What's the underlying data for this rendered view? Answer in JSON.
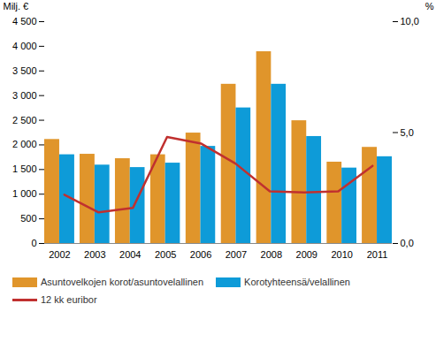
{
  "chart_data": {
    "type": "bar",
    "categories": [
      "2002",
      "2003",
      "2004",
      "2005",
      "2006",
      "2007",
      "2008",
      "2009",
      "2010",
      "2011"
    ],
    "series": [
      {
        "name": "Asuntovelkojen korot/asuntovelallinen",
        "color": "#e0952b",
        "values": [
          2110,
          1810,
          1720,
          1800,
          2240,
          3230,
          3890,
          2490,
          1650,
          1950
        ]
      },
      {
        "name": "Korotyhteensä/velallinen",
        "color": "#0e9bd8",
        "values": [
          1800,
          1590,
          1540,
          1630,
          1970,
          2750,
          3230,
          2170,
          1530,
          1760
        ]
      },
      {
        "name": "12 kk euribor",
        "type": "line",
        "axis": "y2",
        "color": "#c0302f",
        "values": [
          2.2,
          1.4,
          1.6,
          4.8,
          4.5,
          3.6,
          2.35,
          2.3,
          2.35,
          3.5
        ]
      }
    ],
    "ylabel": "Milj. €",
    "y2label": "%",
    "ylim": [
      0,
      4500
    ],
    "yticks": [
      0,
      500,
      {
        "value": 1000,
        "label": "1 000"
      },
      {
        "value": 1500,
        "label": "1 500"
      },
      {
        "value": 2000,
        "label": "2 000"
      },
      {
        "value": 2500,
        "label": "2 500"
      },
      {
        "value": 3000,
        "label": "3 000"
      },
      {
        "value": 3500,
        "label": "3 500"
      },
      {
        "value": 4000,
        "label": "4 000"
      },
      {
        "value": 4500,
        "label": "4 500"
      }
    ],
    "y2lim": [
      0,
      10
    ],
    "y2ticks": [
      {
        "value": 0,
        "label": "0,0"
      },
      {
        "value": 5,
        "label": "5,0"
      },
      {
        "value": 10,
        "label": "10,0"
      }
    ],
    "grid": false,
    "legend": "bottom"
  }
}
